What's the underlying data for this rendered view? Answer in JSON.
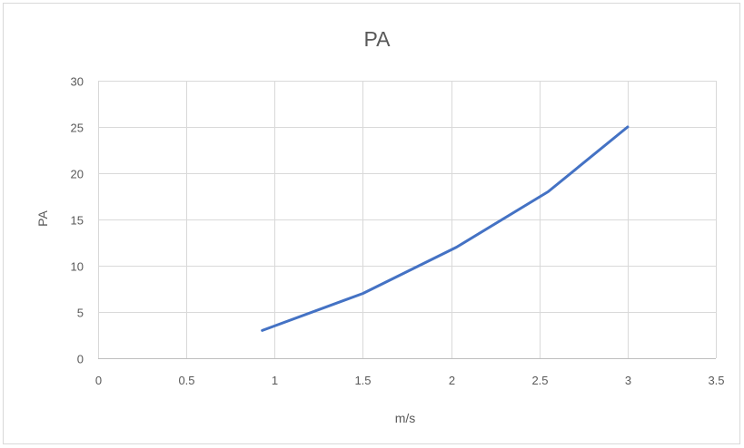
{
  "chart_data": {
    "type": "line",
    "title": "PA",
    "xlabel": "m/s",
    "ylabel": "PA",
    "xlim": [
      0,
      3.5
    ],
    "ylim": [
      0,
      30
    ],
    "x_ticks": [
      0,
      0.5,
      1,
      1.5,
      2,
      2.5,
      3,
      3.5
    ],
    "y_ticks": [
      0,
      5,
      10,
      15,
      20,
      25,
      30
    ],
    "grid": true,
    "legend": "none",
    "series": [
      {
        "color": "#4472c4",
        "points": [
          {
            "x": 0.93,
            "y": 3
          },
          {
            "x": 1.5,
            "y": 7
          },
          {
            "x": 2.03,
            "y": 12
          },
          {
            "x": 2.55,
            "y": 18
          },
          {
            "x": 3,
            "y": 25
          }
        ]
      }
    ],
    "colors": {
      "grid": "#d9d9d9",
      "axis": "#bfbfbf",
      "text": "#595959"
    }
  }
}
